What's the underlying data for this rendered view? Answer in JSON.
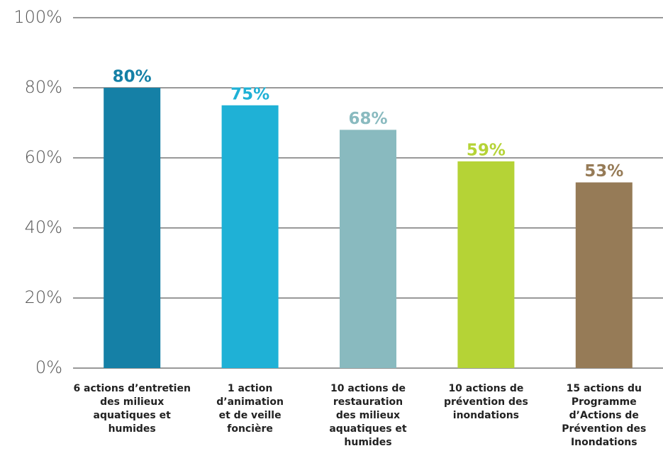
{
  "chart_data": {
    "type": "bar",
    "categories": [
      "6 actions d’entretien\ndes milieux\naquatiques et\nhumides",
      "1 action\nd’animation\net de veille\nfoncière",
      "10 actions de\nrestauration\ndes milieux\naquatiques et\nhumides",
      "10 actions de\nprévention des\ninondations",
      "15 actions du\nProgramme\nd’Actions de\nPrévention des\nInondations"
    ],
    "values": [
      80,
      75,
      68,
      59,
      53
    ],
    "value_labels": [
      "80%",
      "75%",
      "68%",
      "59%",
      "53%"
    ],
    "colors": [
      "#1580a6",
      "#1fb1d6",
      "#89babf",
      "#b5d336",
      "#967b57"
    ],
    "ylim": [
      0,
      100
    ],
    "yticks": [
      {
        "value": 0,
        "label": "0%"
      },
      {
        "value": 20,
        "label": "20%"
      },
      {
        "value": 40,
        "label": "40%"
      },
      {
        "value": 60,
        "label": "60%"
      },
      {
        "value": 80,
        "label": "80%"
      },
      {
        "value": 100,
        "label": "100%"
      }
    ],
    "grid": true
  }
}
